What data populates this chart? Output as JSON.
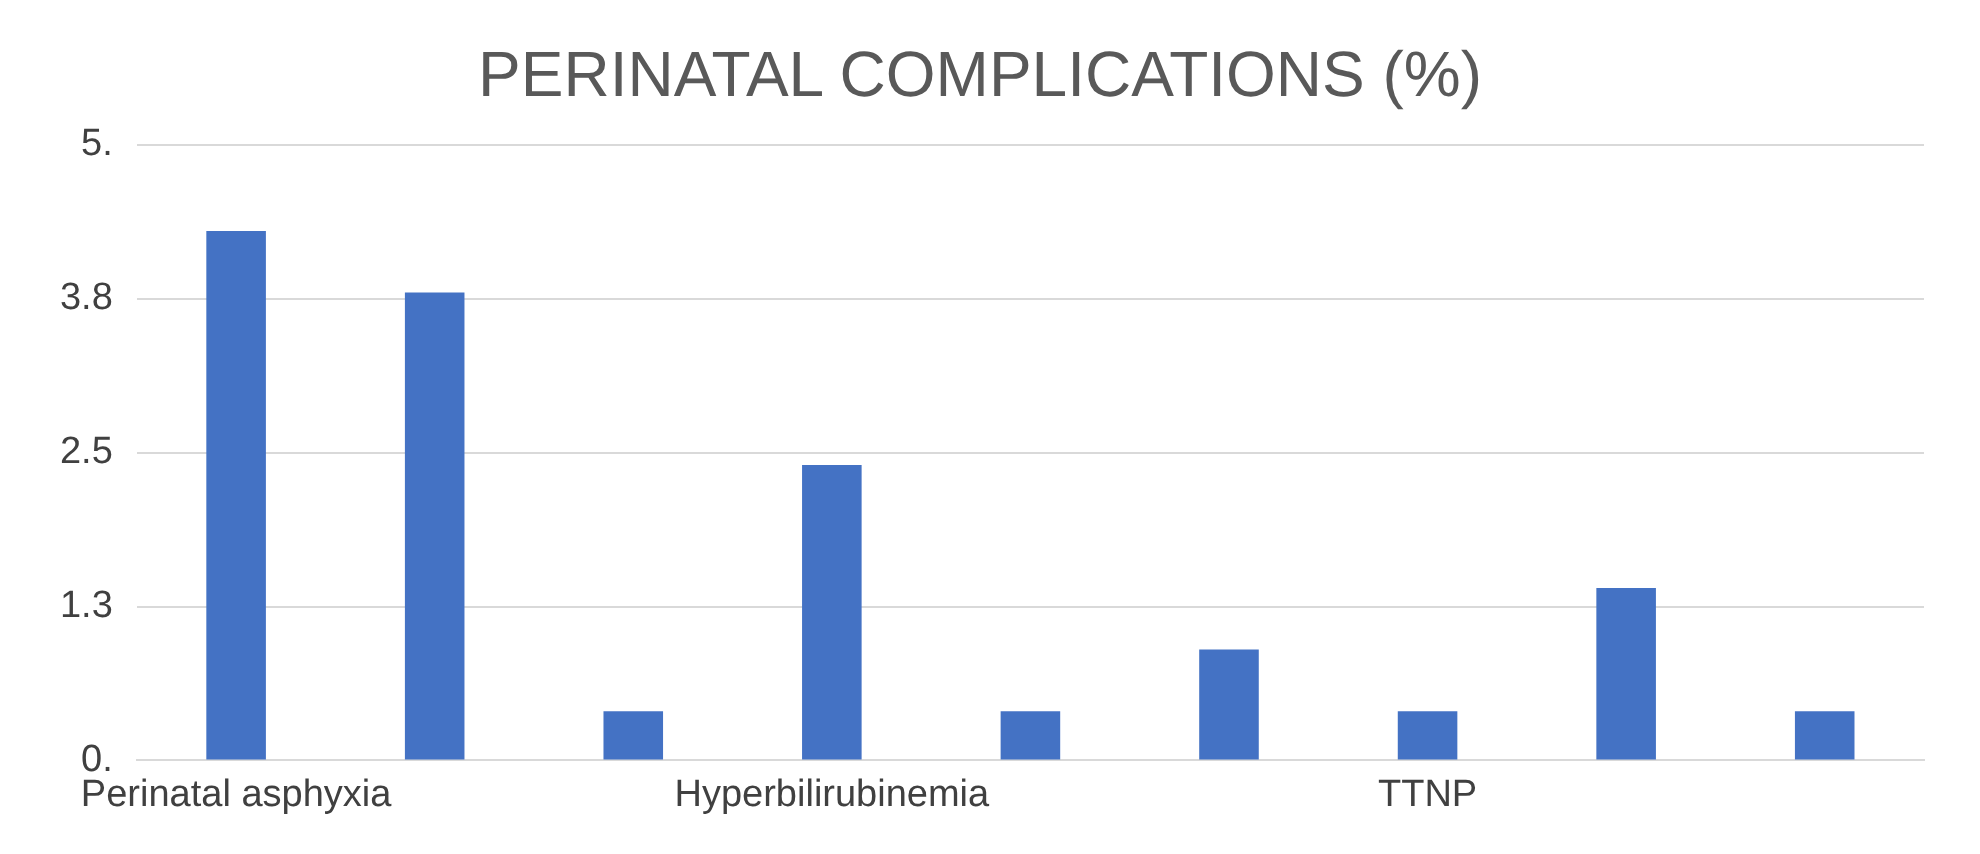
{
  "chart_data": {
    "type": "bar",
    "title": "PERINATAL COMPLICATIONS (%)",
    "categories": [
      "Perinatal asphyxia",
      null,
      null,
      "Hyperbilirubinemia",
      null,
      null,
      "TTNP",
      null,
      null
    ],
    "values": [
      4.3,
      3.8,
      0.4,
      2.4,
      0.4,
      0.9,
      0.4,
      1.4,
      0.4
    ],
    "color": "#4472c4",
    "ylim": [
      0,
      5
    ],
    "yticks": [
      {
        "value": 0,
        "label": "0."
      },
      {
        "value": 1.25,
        "label": "1.3"
      },
      {
        "value": 2.5,
        "label": "2.5"
      },
      {
        "value": 3.75,
        "label": "3.8"
      },
      {
        "value": 5,
        "label": "5."
      }
    ],
    "grid": "y",
    "legend": false
  }
}
